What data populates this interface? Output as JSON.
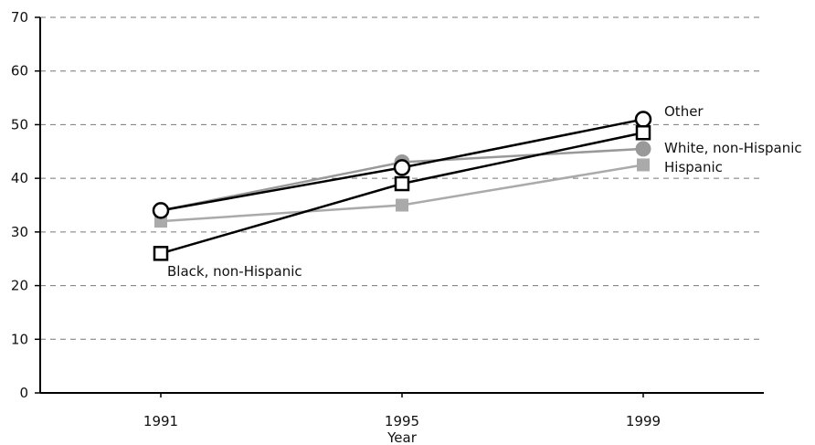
{
  "chart_data": {
    "type": "line",
    "title": "",
    "xlabel": "Year",
    "ylabel": "",
    "categories": [
      "1991",
      "1995",
      "1999"
    ],
    "ylim": [
      0,
      70
    ],
    "yticks": [
      0,
      10,
      20,
      30,
      40,
      50,
      60,
      70
    ],
    "grid": true,
    "series": [
      {
        "name": "Other",
        "values": [
          34,
          42,
          51
        ],
        "marker": "circle-open",
        "color": "#000000"
      },
      {
        "name": "White, non-Hispanic",
        "values": [
          34,
          43,
          45.5
        ],
        "marker": "circle-filled",
        "color": "#999999"
      },
      {
        "name": "Hispanic",
        "values": [
          32,
          35,
          42.5
        ],
        "marker": "square-filled",
        "color": "#aaaaaa"
      },
      {
        "name": "Black, non-Hispanic",
        "values": [
          26,
          39,
          48.5
        ],
        "marker": "square-open",
        "color": "#000000"
      }
    ]
  }
}
